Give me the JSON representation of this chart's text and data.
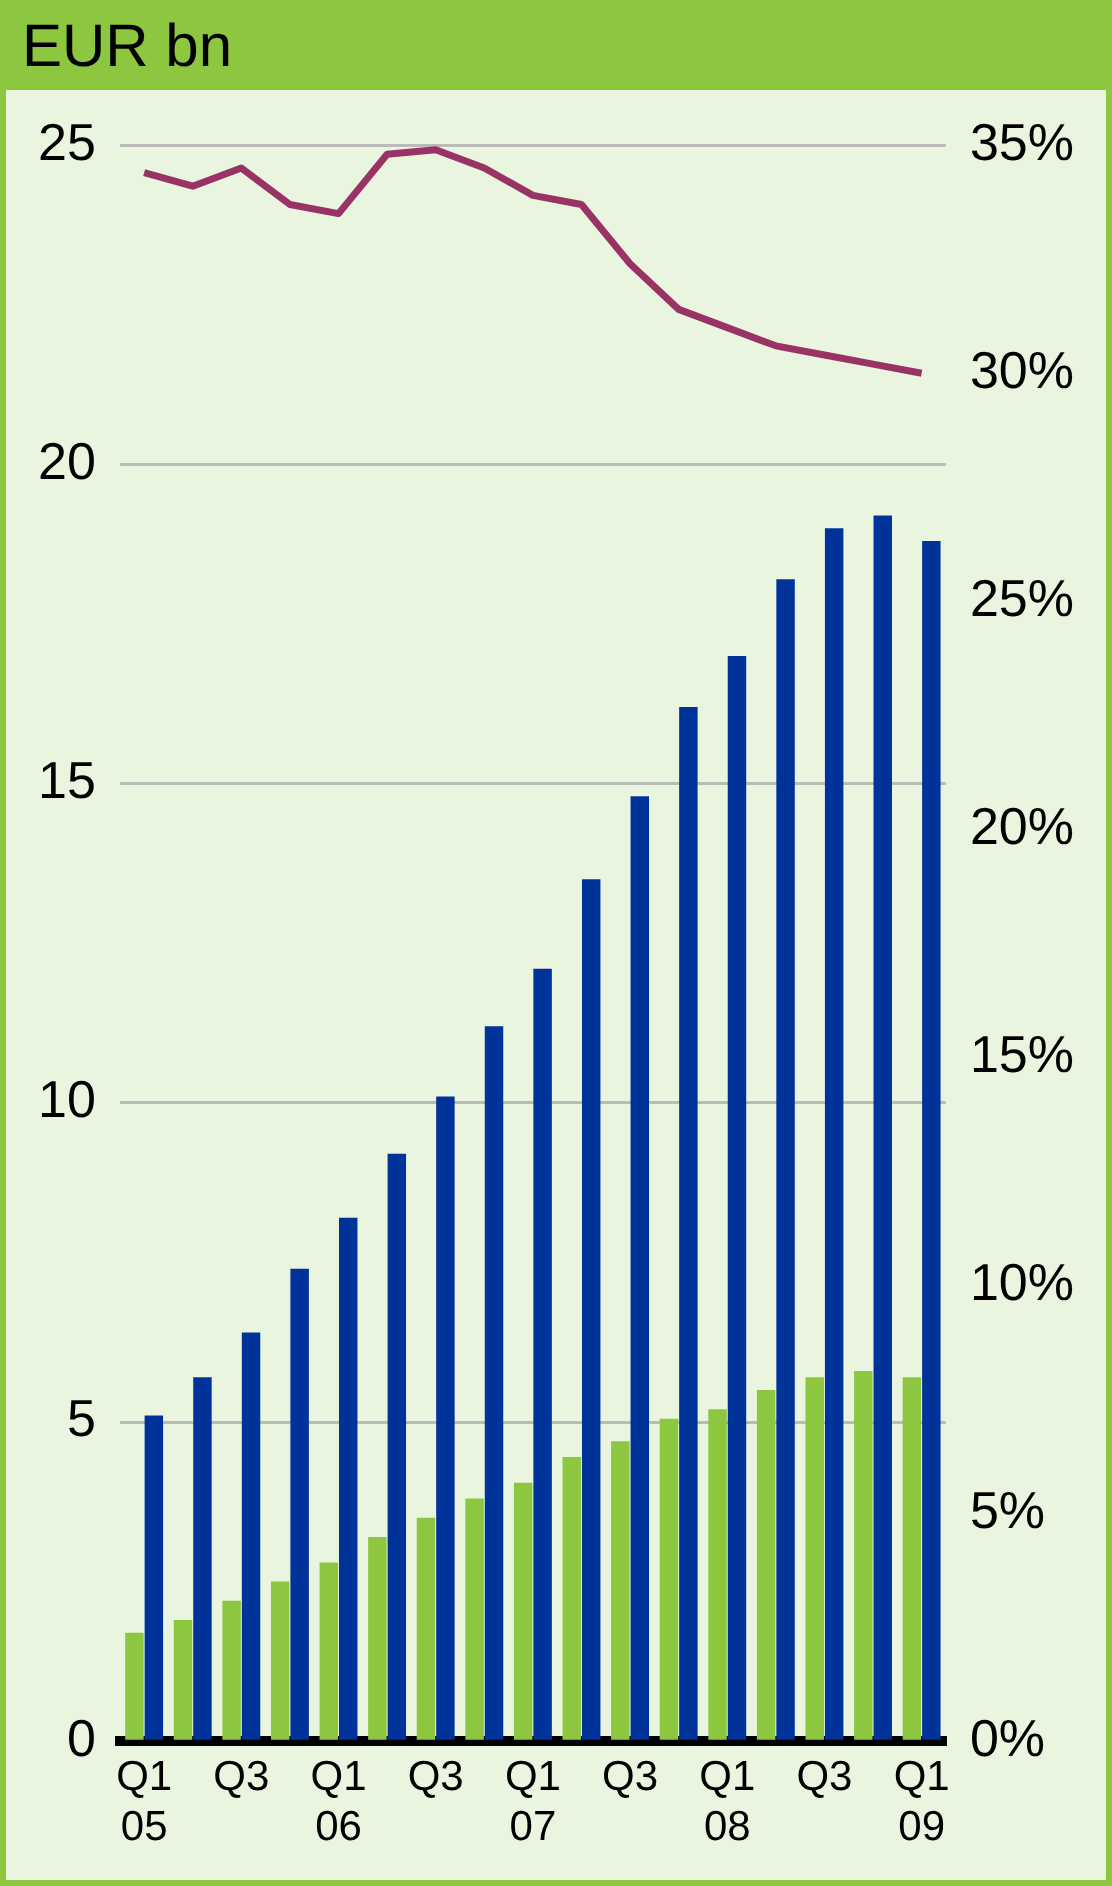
{
  "chart_data": {
    "type": "bar",
    "title": "EUR bn",
    "categories": [
      "Q1\n05",
      null,
      "Q3",
      null,
      "Q1\n06",
      null,
      "Q3",
      null,
      "Q1\n07",
      null,
      "Q3",
      null,
      "Q1\n08",
      null,
      "Q3",
      null,
      "Q1\n09"
    ],
    "series": [
      {
        "color": "#8dc63f",
        "values": [
          1.7,
          1.9,
          2.2,
          2.5,
          2.8,
          3.2,
          3.5,
          3.8,
          4.05,
          4.45,
          4.7,
          5.05,
          5.2,
          5.5,
          5.7,
          5.8,
          5.7
        ]
      },
      {
        "color": "#003399",
        "values": [
          5.1,
          5.7,
          6.4,
          7.4,
          8.2,
          9.2,
          10.1,
          11.2,
          12.1,
          13.5,
          14.8,
          16.2,
          17.0,
          18.2,
          19.0,
          19.2,
          18.8
        ]
      },
      {
        "type": "line",
        "axis": "y2",
        "color": "#993366",
        "values": [
          34.4,
          34.1,
          34.5,
          33.7,
          33.5,
          34.8,
          34.9,
          34.5,
          33.9,
          33.7,
          32.4,
          31.4,
          31.0,
          30.6,
          30.4,
          30.2,
          30.0
        ]
      }
    ],
    "ylim": [
      0,
      25
    ],
    "yticks": [
      0,
      5,
      10,
      15,
      20,
      25
    ],
    "y2lim": [
      0,
      35
    ],
    "y2ticks": [
      {
        "value": 0,
        "label": "0%"
      },
      {
        "value": 5,
        "label": "5%"
      },
      {
        "value": 10,
        "label": "10%"
      },
      {
        "value": 15,
        "label": "15%"
      },
      {
        "value": 20,
        "label": "20%"
      },
      {
        "value": 25,
        "label": "25%"
      },
      {
        "value": 30,
        "label": "30%"
      },
      {
        "value": 35,
        "label": "35%"
      }
    ],
    "grid": "y",
    "legend": false,
    "marker": "none",
    "line_style": "solid"
  }
}
